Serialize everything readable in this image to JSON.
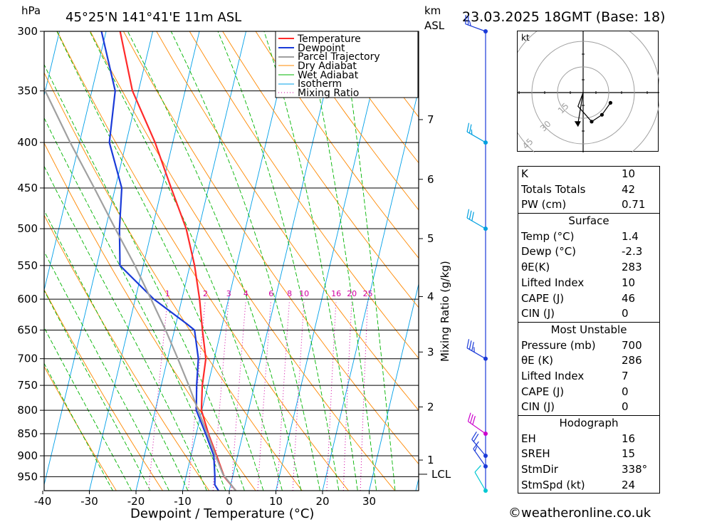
{
  "header": {
    "hpa_label": "hPa",
    "location": "45°25'N  141°41'E  11m  ASL",
    "km_label": "km",
    "asl_label": "ASL",
    "datetime": "23.03.2025  18GMT  (Base: 18)"
  },
  "chart_data": {
    "type": "skew-t log-p",
    "xlabel": "Dewpoint / Temperature (°C)",
    "ylabel": "hPa",
    "right_axis_label": "Mixing Ratio (g/kg)",
    "xlim": [
      -40,
      40
    ],
    "x_ticks": [
      -40,
      -30,
      -20,
      -10,
      0,
      10,
      20,
      30
    ],
    "ylim": [
      985,
      300
    ],
    "pressure_ticks": [
      300,
      350,
      400,
      450,
      500,
      550,
      600,
      650,
      700,
      750,
      800,
      850,
      900,
      950
    ],
    "height_km_ticks": [
      {
        "km": "1",
        "p": 910
      },
      {
        "km": "2",
        "p": 793
      },
      {
        "km": "3",
        "p": 688
      },
      {
        "km": "4",
        "p": 596
      },
      {
        "km": "5",
        "p": 513
      },
      {
        "km": "6",
        "p": 440
      },
      {
        "km": "7",
        "p": 377
      }
    ],
    "lcl": {
      "label": "LCL",
      "p": 944
    },
    "mixing_ratio_labels": [
      "1",
      "2",
      "3",
      "4",
      "6",
      "8",
      "10",
      "16",
      "20",
      "25"
    ],
    "mixing_ratio_values": [
      1,
      2,
      3,
      4,
      6,
      8,
      10,
      16,
      20,
      25
    ],
    "mixing_ratio_label_p": 600,
    "legend": [
      "Temperature",
      "Dewpoint",
      "Parcel Trajectory",
      "Dry Adiabat",
      "Wet Adiabat",
      "Isotherm",
      "Mixing Ratio"
    ],
    "series": [
      {
        "name": "Temperature",
        "color": "#ff2a2a",
        "points": [
          [
            985,
            1.4
          ],
          [
            950,
            -1.8
          ],
          [
            900,
            -4.5
          ],
          [
            850,
            -7.4
          ],
          [
            800,
            -10.1
          ],
          [
            750,
            -11.2
          ],
          [
            700,
            -11.8
          ],
          [
            650,
            -14
          ],
          [
            600,
            -16.2
          ],
          [
            550,
            -19
          ],
          [
            500,
            -22.7
          ],
          [
            450,
            -28
          ],
          [
            400,
            -33.8
          ],
          [
            350,
            -41.3
          ],
          [
            300,
            -47
          ]
        ]
      },
      {
        "name": "Dewpoint",
        "color": "#1a3ad8",
        "points": [
          [
            985,
            -2.3
          ],
          [
            970,
            -3.4
          ],
          [
            950,
            -3.8
          ],
          [
            900,
            -5.1
          ],
          [
            850,
            -8
          ],
          [
            800,
            -11.2
          ],
          [
            750,
            -12.4
          ],
          [
            700,
            -13.4
          ],
          [
            650,
            -15.7
          ],
          [
            640,
            -17.6
          ],
          [
            600,
            -26
          ],
          [
            550,
            -35
          ],
          [
            500,
            -37
          ],
          [
            450,
            -38.6
          ],
          [
            400,
            -43.6
          ],
          [
            350,
            -45
          ],
          [
            300,
            -51
          ]
        ]
      },
      {
        "name": "Parcel Trajectory",
        "color": "#a0a0a0",
        "points": [
          [
            985,
            1.4
          ],
          [
            944,
            -2.2
          ],
          [
            900,
            -4.7
          ],
          [
            850,
            -7.6
          ],
          [
            800,
            -10.8
          ],
          [
            750,
            -14.1
          ],
          [
            700,
            -17.8
          ],
          [
            650,
            -21.9
          ],
          [
            600,
            -26.6
          ],
          [
            550,
            -31.8
          ],
          [
            500,
            -37.9
          ],
          [
            450,
            -44.5
          ],
          [
            400,
            -52
          ],
          [
            350,
            -60
          ],
          [
            300,
            -69
          ]
        ]
      }
    ],
    "winds": [
      {
        "p": 985,
        "dir": 330,
        "kt": 10,
        "color": "#00c8d2"
      },
      {
        "p": 925,
        "dir": 325,
        "kt": 15,
        "color": "#1a3ad8"
      },
      {
        "p": 900,
        "dir": 320,
        "kt": 20,
        "color": "#1a3ad8"
      },
      {
        "p": 850,
        "dir": 305,
        "kt": 30,
        "color": "#cc00cc"
      },
      {
        "p": 700,
        "dir": 300,
        "kt": 35,
        "color": "#1a3ad8"
      },
      {
        "p": 500,
        "dir": 300,
        "kt": 30,
        "color": "#00a0e0"
      },
      {
        "p": 400,
        "dir": 300,
        "kt": 25,
        "color": "#00a0e0"
      },
      {
        "p": 300,
        "dir": 290,
        "kt": 25,
        "color": "#1a3ad8"
      }
    ],
    "colors": {
      "isotherm": "#00a0e8",
      "dry_adiabat": "#ff8800",
      "wet_adiabat": "#00b400",
      "mixing_ratio": "#d000a0",
      "wind_staff": "#1a3ad8"
    }
  },
  "hodograph": {
    "unit_label": "kt",
    "ring_labels": [
      "15",
      "30",
      "45"
    ],
    "points_kt": [
      [
        -3,
        -8
      ],
      [
        5,
        -17
      ],
      [
        11,
        -13
      ],
      [
        16,
        -6
      ]
    ],
    "storm_motion_kt": [
      -3,
      -18
    ]
  },
  "indices": {
    "general": [
      {
        "label": "K",
        "value": "10"
      },
      {
        "label": "Totals Totals",
        "value": "42"
      },
      {
        "label": "PW (cm)",
        "value": "0.71"
      }
    ],
    "surface": {
      "title": "Surface",
      "rows": [
        {
          "label": "Temp (°C)",
          "value": "1.4"
        },
        {
          "label": "Dewp (°C)",
          "value": "-2.3"
        },
        {
          "label": "θE(K)",
          "value": "283"
        },
        {
          "label": "Lifted Index",
          "value": "10"
        },
        {
          "label": "CAPE (J)",
          "value": "46"
        },
        {
          "label": "CIN (J)",
          "value": "0"
        }
      ]
    },
    "most_unstable": {
      "title": "Most Unstable",
      "rows": [
        {
          "label": "Pressure (mb)",
          "value": "700"
        },
        {
          "label": "θE (K)",
          "value": "286"
        },
        {
          "label": "Lifted Index",
          "value": "7"
        },
        {
          "label": "CAPE (J)",
          "value": "0"
        },
        {
          "label": "CIN (J)",
          "value": "0"
        }
      ]
    },
    "hodograph": {
      "title": "Hodograph",
      "rows": [
        {
          "label": "EH",
          "value": "16"
        },
        {
          "label": "SREH",
          "value": "15"
        },
        {
          "label": "StmDir",
          "value": "338°"
        },
        {
          "label": "StmSpd (kt)",
          "value": "24"
        }
      ]
    }
  },
  "footer": {
    "copyright": "©weatheronline.co.uk"
  }
}
